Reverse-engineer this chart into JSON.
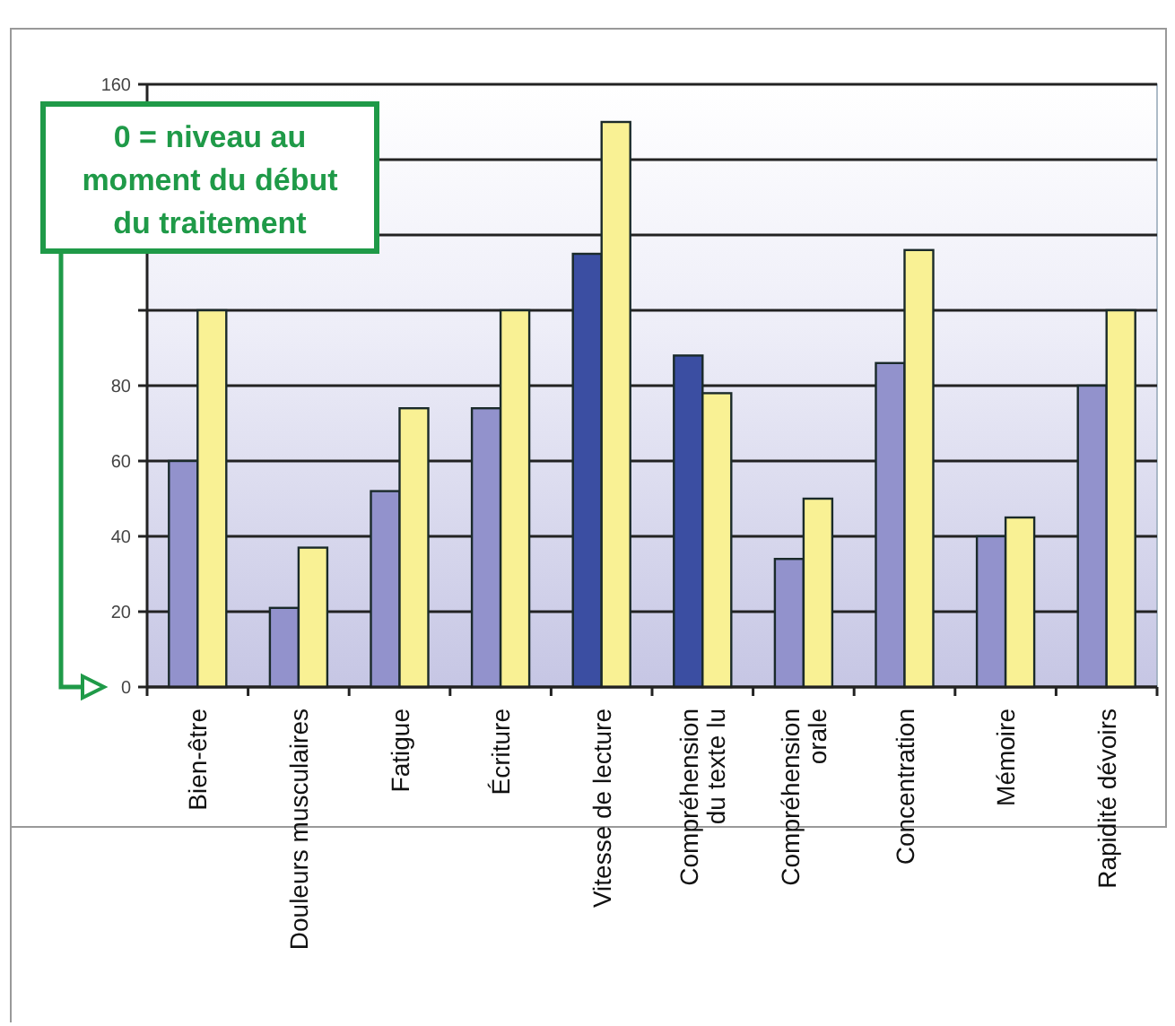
{
  "chart_data": {
    "type": "bar",
    "categories": [
      "Bien-être",
      "Douleurs musculaires",
      "Fatigue",
      "Écriture",
      "Vitesse de lecture",
      "Compréhension\ndu texte lu",
      "Compréhension\norale",
      "Concentration",
      "Mémoire",
      "Rapidité dévoirs"
    ],
    "series": [
      {
        "colors": [
          "#9292cc",
          "#9292cc",
          "#9292cc",
          "#9292cc",
          "#3b4ea2",
          "#3b4ea2",
          "#9292cc",
          "#9292cc",
          "#9292cc",
          "#9292cc"
        ],
        "values": [
          60,
          21,
          52,
          74,
          115,
          88,
          34,
          86,
          40,
          80
        ]
      },
      {
        "color": "#f9f194",
        "values": [
          100,
          37,
          74,
          100,
          150,
          78,
          50,
          116,
          45,
          100
        ]
      }
    ],
    "ylim": [
      0,
      160
    ],
    "yticks": [
      0,
      20,
      40,
      60,
      80,
      {
        "value": 100,
        "label": null
      },
      {
        "value": 120,
        "label": null
      },
      {
        "value": 140,
        "label": null
      },
      160
    ],
    "grid": "y",
    "annotations": [
      "0 = niveau au moment du début du traitement"
    ]
  }
}
